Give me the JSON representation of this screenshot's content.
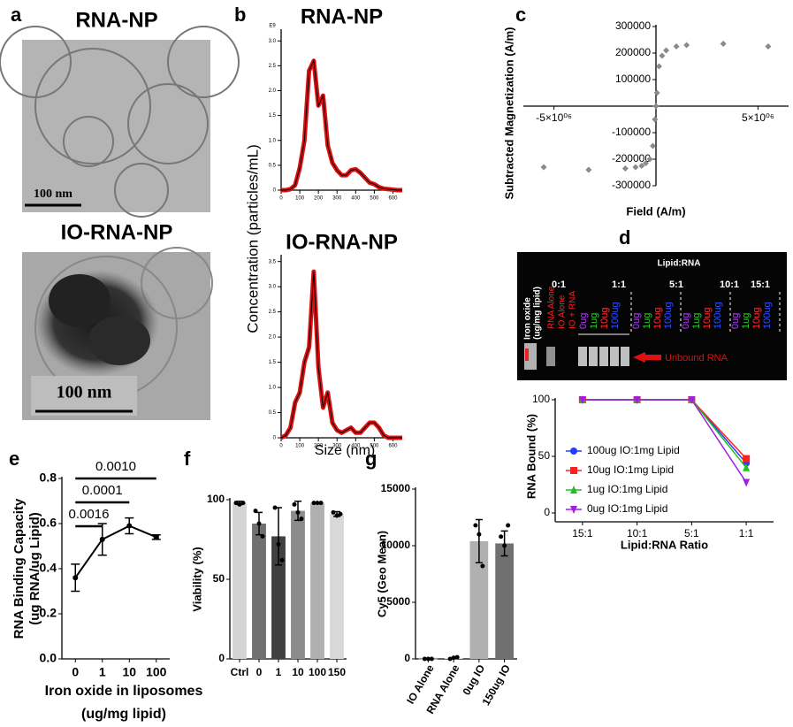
{
  "panel_labels": [
    "a",
    "b",
    "c",
    "d",
    "e",
    "f",
    "g"
  ],
  "panel_a": {
    "titles": [
      "RNA-NP",
      "IO-RNA-NP"
    ],
    "scale_bars": [
      "100 nm",
      "100 nm"
    ]
  },
  "gel": {
    "title": "Lipid:RNA",
    "groups": [
      "0:1",
      "1:1",
      "5:1",
      "10:1",
      "15:1"
    ],
    "row_label": [
      "Iron oxide",
      "(ug/mg lipid)"
    ],
    "controls": [
      "RNA Alone",
      "IO Alone",
      "IO + RNA"
    ],
    "lanes": [
      "0ug",
      "1ug",
      "10ug",
      "100ug"
    ],
    "lane_colors": [
      "#b040ff",
      "#30d030",
      "#ff3030",
      "#3050ff"
    ],
    "arrow_label": "Unbound RNA"
  },
  "chart_data": [
    {
      "type": "line",
      "title": "RNA-NP",
      "y_unit": "E9",
      "x": [
        0,
        25,
        50,
        75,
        100,
        125,
        150,
        175,
        200,
        225,
        250,
        275,
        300,
        325,
        350,
        375,
        400,
        425,
        450,
        475,
        500,
        525,
        550,
        575,
        600,
        625,
        650
      ],
      "values": [
        0,
        0,
        0.02,
        0.1,
        0.45,
        1.0,
        2.4,
        2.6,
        1.7,
        1.9,
        0.9,
        0.55,
        0.4,
        0.3,
        0.3,
        0.4,
        0.42,
        0.35,
        0.25,
        0.15,
        0.12,
        0.06,
        0.03,
        0.02,
        0.01,
        0,
        0
      ],
      "color": "#e01010",
      "xlim": [
        0,
        650
      ],
      "xticks": [
        0,
        100,
        200,
        300,
        400,
        500,
        600
      ],
      "ylim": [
        0,
        3.2
      ],
      "yticks": [
        0,
        0.5,
        {
          "value": 1,
          "label": "1.0"
        },
        1.5,
        {
          "value": 2,
          "label": "2.0"
        },
        2.5,
        {
          "value": 3,
          "label": "3.0"
        }
      ]
    },
    {
      "type": "line",
      "title": "IO-RNA-NP",
      "ylabel": "Concentration (particles/mL)",
      "xlabel": "Size (nm)",
      "x": [
        0,
        25,
        50,
        75,
        100,
        125,
        150,
        175,
        200,
        225,
        250,
        275,
        300,
        325,
        350,
        375,
        400,
        425,
        450,
        475,
        500,
        525,
        550,
        575,
        600,
        625,
        650
      ],
      "values": [
        0,
        0.05,
        0.2,
        0.7,
        0.9,
        1.5,
        1.8,
        3.3,
        1.4,
        0.6,
        0.9,
        0.3,
        0.15,
        0.1,
        0.15,
        0.2,
        0.1,
        0.1,
        0.2,
        0.3,
        0.3,
        0.2,
        0.05,
        0,
        0,
        0,
        0
      ],
      "color": "#e01010",
      "xlim": [
        0,
        650
      ],
      "xticks": [
        0,
        100,
        200,
        300,
        400,
        500,
        600
      ],
      "ylim": [
        0,
        3.6
      ],
      "yticks": [
        0,
        0.5,
        {
          "value": 1,
          "label": "1.0"
        },
        1.5,
        {
          "value": 2,
          "label": "2.0"
        },
        2.5,
        {
          "value": 3,
          "label": "3.0"
        },
        3.5
      ]
    },
    {
      "type": "scatter",
      "ylabel": "Subtracted Magnetization (A/m)",
      "xlabel": "Field (A/m)",
      "x": [
        -5500000,
        -3300000,
        -1500000,
        -1000000,
        -700000,
        -500000,
        -300000,
        -150000,
        -50000,
        0,
        50000,
        150000,
        300000,
        500000,
        1000000,
        1500000,
        3300000,
        5500000
      ],
      "values": [
        -230000,
        -240000,
        -235000,
        -230000,
        -225000,
        -215000,
        -200000,
        -150000,
        -50000,
        0,
        50000,
        150000,
        190000,
        210000,
        225000,
        230000,
        235000,
        225000
      ],
      "color": "#8a8a8a",
      "xlim": [
        -6500000,
        6500000
      ],
      "xticks": [
        {
          "value": -5000000,
          "label": "-5×10⁰⁶"
        },
        {
          "value": 5000000,
          "label": "5×10⁰⁶"
        }
      ],
      "ylim": [
        -300000,
        300000
      ],
      "yticks": [
        -300000,
        -200000,
        -100000,
        100000,
        200000,
        300000
      ]
    },
    {
      "type": "line",
      "ylabel": "RNA Bound (%)",
      "xlabel": "Lipid:RNA Ratio",
      "legend": "left",
      "categories": [
        "15:1",
        "10:1",
        "5:1",
        "1:1"
      ],
      "series": [
        {
          "name": "100ug IO:1mg Lipid",
          "color": "#1f3fff",
          "marker": "circle",
          "values": [
            100,
            100,
            100,
            44
          ]
        },
        {
          "name": "10ug IO:1mg Lipid",
          "color": "#ff2020",
          "marker": "square",
          "values": [
            100,
            100,
            100,
            48
          ]
        },
        {
          "name": "1ug IO:1mg Lipid",
          "color": "#20c020",
          "marker": "triangle",
          "values": [
            100,
            100,
            100,
            40
          ]
        },
        {
          "name": "0ug IO:1mg Lipid",
          "color": "#a020e0",
          "marker": "down-triangle",
          "values": [
            100,
            100,
            100,
            27
          ]
        }
      ],
      "ylim": [
        0,
        100
      ],
      "yticks": [
        0,
        50,
        100
      ]
    },
    {
      "type": "line",
      "ylabel": [
        "RNA Binding Capacity",
        "(ug RNA/ug Lipid)"
      ],
      "xlabel": [
        "Iron oxide in liposomes",
        "(ug/mg lipid)"
      ],
      "categories": [
        "0",
        "1",
        "10",
        "100"
      ],
      "values": [
        0.36,
        0.53,
        0.59,
        0.54
      ],
      "errors": [
        0.06,
        0.07,
        0.035,
        0.01
      ],
      "color": "#000000",
      "annotations": [
        "0.0016",
        "0.0001",
        "0.0010"
      ],
      "ylim": [
        0,
        0.8
      ],
      "yticks": [
        {
          "value": 0,
          "label": "0.0"
        },
        0.2,
        0.4,
        0.6,
        0.8
      ]
    },
    {
      "type": "bar",
      "ylabel": "Viability (%)",
      "categories": [
        "Ctrl",
        "0",
        "1",
        "10",
        "100",
        "150"
      ],
      "values": [
        98,
        85,
        77,
        93,
        98,
        91
      ],
      "errors": [
        1,
        7,
        18,
        6,
        0.5,
        1.5
      ],
      "colors": [
        "#d4d4d4",
        "#707070",
        "#404040",
        "#8c8c8c",
        "#b0b0b0",
        "#d8d8d8"
      ],
      "points": [
        [
          98,
          97,
          98
        ],
        [
          93,
          85,
          77
        ],
        [
          95,
          72,
          62
        ],
        [
          97,
          92,
          88
        ],
        [
          98,
          98,
          98
        ],
        [
          92,
          90,
          91
        ]
      ],
      "ylim": [
        0,
        100
      ],
      "yticks": [
        0,
        50,
        100
      ]
    },
    {
      "type": "bar",
      "ylabel": "Cy5 (Geo Mean)",
      "categories": [
        "IO Alone",
        "RNA Alone",
        "0ug IO",
        "150ug IO"
      ],
      "values": [
        50,
        100,
        10400,
        10200
      ],
      "errors": [
        0,
        0,
        1900,
        1100
      ],
      "colors": [
        "#ffffff",
        "#e0e0e0",
        "#b0b0b0",
        "#707070"
      ],
      "points": [
        [
          0,
          0,
          0
        ],
        [
          0,
          100,
          150
        ],
        [
          11800,
          11000,
          8200
        ],
        [
          10800,
          10000,
          11800
        ]
      ],
      "ylim": [
        0,
        15000
      ],
      "yticks": [
        0,
        5000,
        10000,
        15000
      ]
    }
  ]
}
